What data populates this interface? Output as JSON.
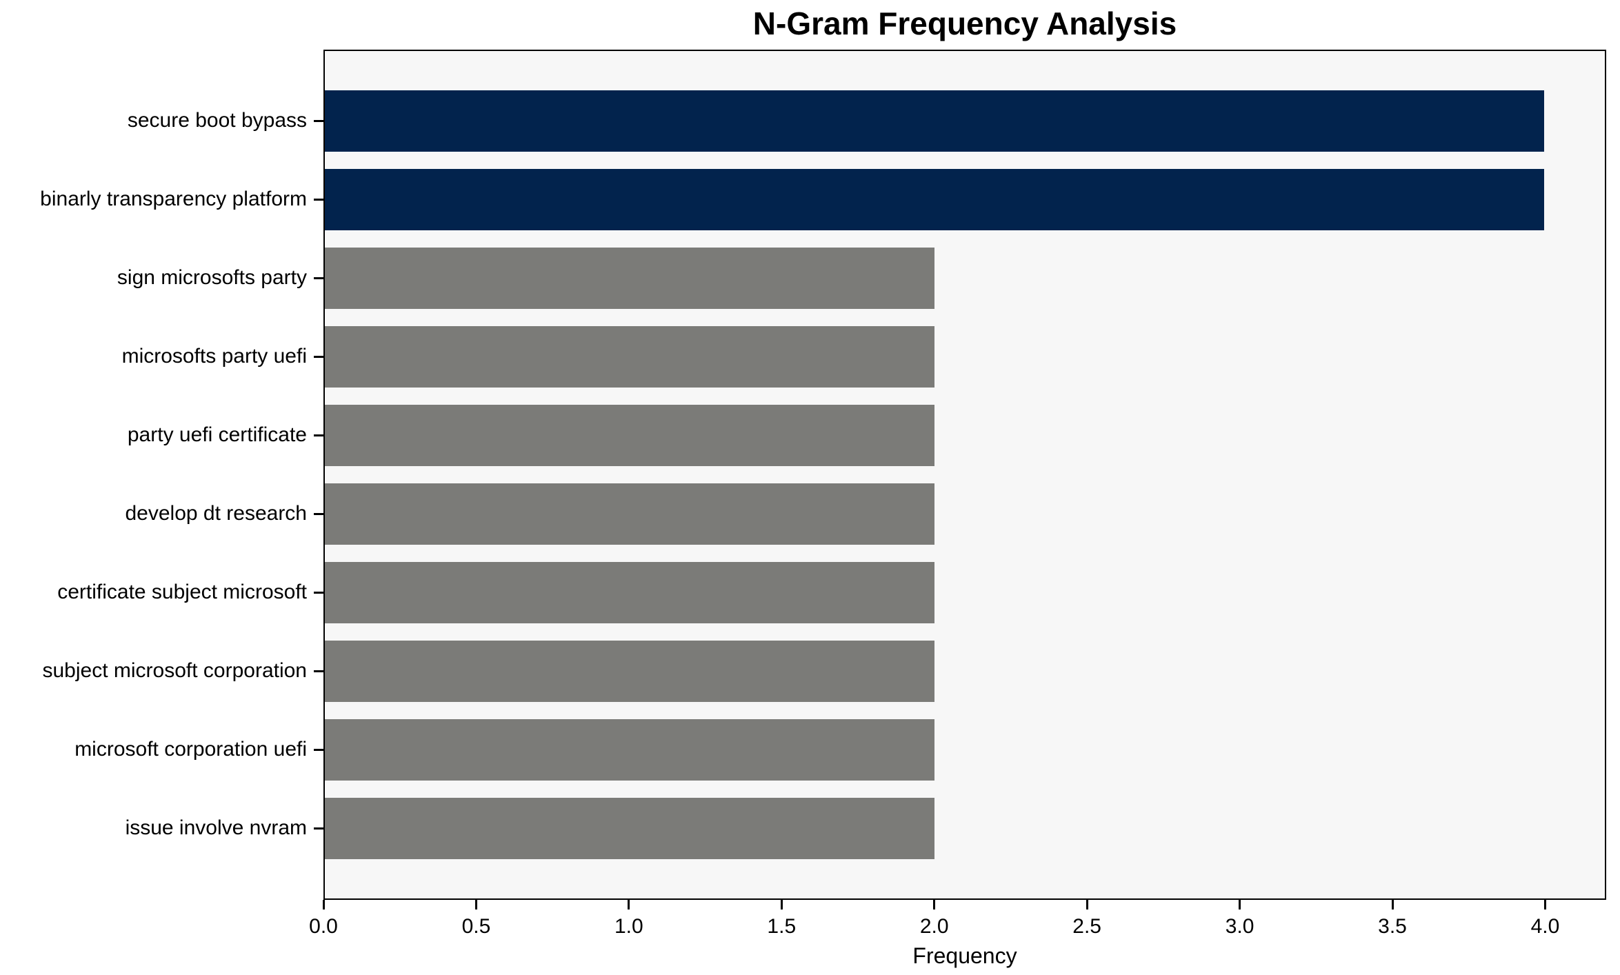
{
  "chart_data": {
    "type": "bar",
    "orientation": "horizontal",
    "title": "N-Gram Frequency Analysis",
    "xlabel": "Frequency",
    "ylabel": "",
    "categories": [
      "secure boot bypass",
      "binarly transparency platform",
      "sign microsofts party",
      "microsofts party uefi",
      "party uefi certificate",
      "develop dt research",
      "certificate subject microsoft",
      "subject microsoft corporation",
      "microsoft corporation uefi",
      "issue involve nvram"
    ],
    "values": [
      4,
      4,
      2,
      2,
      2,
      2,
      2,
      2,
      2,
      2
    ],
    "bar_colors": [
      "#02234d",
      "#02234d",
      "#7b7b78",
      "#7b7b78",
      "#7b7b78",
      "#7b7b78",
      "#7b7b78",
      "#7b7b78",
      "#7b7b78",
      "#7b7b78"
    ],
    "highlight_color": "#02234d",
    "default_color": "#7b7b78",
    "xlim": [
      0,
      4.2
    ],
    "xticks": [
      0.0,
      0.5,
      1.0,
      1.5,
      2.0,
      2.5,
      3.0,
      3.5,
      4.0
    ],
    "xtick_labels": [
      "0.0",
      "0.5",
      "1.0",
      "1.5",
      "2.0",
      "2.5",
      "3.0",
      "3.5",
      "4.0"
    ],
    "grid": false,
    "legend_visible": false,
    "plot_background": "#f7f7f7",
    "frame_color": "#000000",
    "text_color": "#000000"
  }
}
